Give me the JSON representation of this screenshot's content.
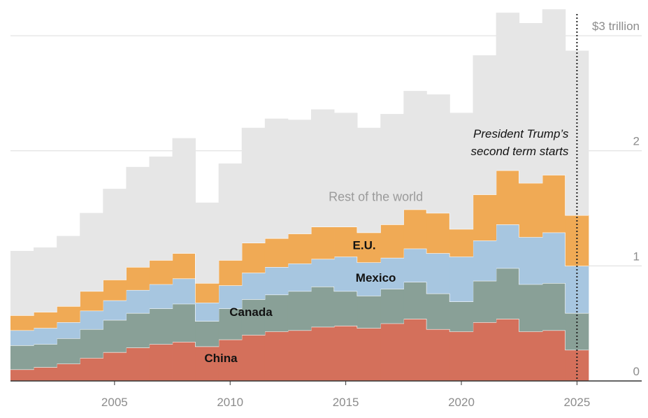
{
  "chart_data": {
    "type": "area",
    "stacked": true,
    "step": true,
    "title": "",
    "xlabel": "",
    "ylabel": "",
    "x": [
      2001,
      2002,
      2003,
      2004,
      2005,
      2006,
      2007,
      2008,
      2009,
      2010,
      2011,
      2012,
      2013,
      2014,
      2015,
      2016,
      2017,
      2018,
      2019,
      2020,
      2021,
      2022,
      2023,
      2024,
      2025
    ],
    "xlim": [
      2000.5,
      2027.8
    ],
    "x_ticks": [
      {
        "value": 2005,
        "label": "2005"
      },
      {
        "value": 2010,
        "label": "2010"
      },
      {
        "value": 2015,
        "label": "2015"
      },
      {
        "value": 2020,
        "label": "2020"
      },
      {
        "value": 2025,
        "label": "2025"
      }
    ],
    "ylim": [
      0,
      3.28
    ],
    "y_ticks": [
      {
        "value": 0,
        "label": "0"
      },
      {
        "value": 1,
        "label": "1"
      },
      {
        "value": 2,
        "label": "2"
      },
      {
        "value": 3,
        "label": "$3 trillion"
      }
    ],
    "grid": true,
    "series": [
      {
        "name": "China",
        "color": "#d4705b",
        "label_pos": {
          "x": 2009.6,
          "y": 0.2
        },
        "values": [
          0.1,
          0.12,
          0.15,
          0.2,
          0.25,
          0.29,
          0.32,
          0.34,
          0.3,
          0.36,
          0.4,
          0.43,
          0.44,
          0.47,
          0.48,
          0.46,
          0.5,
          0.54,
          0.45,
          0.43,
          0.51,
          0.54,
          0.43,
          0.44,
          0.27
        ]
      },
      {
        "name": "Canada",
        "color": "#89a097",
        "label_pos": {
          "x": 2010.9,
          "y": 0.6
        },
        "values": [
          0.21,
          0.2,
          0.22,
          0.25,
          0.28,
          0.3,
          0.31,
          0.33,
          0.22,
          0.27,
          0.31,
          0.32,
          0.34,
          0.35,
          0.3,
          0.28,
          0.3,
          0.32,
          0.31,
          0.26,
          0.36,
          0.44,
          0.41,
          0.41,
          0.32
        ]
      },
      {
        "name": "Mexico",
        "color": "#a7c6e0",
        "label_pos": {
          "x": 2016.3,
          "y": 0.9
        },
        "values": [
          0.13,
          0.14,
          0.14,
          0.16,
          0.17,
          0.2,
          0.21,
          0.22,
          0.16,
          0.2,
          0.23,
          0.24,
          0.24,
          0.24,
          0.3,
          0.29,
          0.27,
          0.29,
          0.35,
          0.39,
          0.35,
          0.38,
          0.41,
          0.44,
          0.41
        ]
      },
      {
        "name": "E.U.",
        "color": "#f0aa55",
        "label_pos": {
          "x": 2015.8,
          "y": 1.18
        },
        "values": [
          0.13,
          0.14,
          0.14,
          0.17,
          0.18,
          0.2,
          0.21,
          0.22,
          0.17,
          0.22,
          0.26,
          0.25,
          0.26,
          0.28,
          0.26,
          0.26,
          0.29,
          0.34,
          0.35,
          0.24,
          0.4,
          0.47,
          0.47,
          0.5,
          0.44
        ]
      },
      {
        "name": "Rest of the world",
        "color": "#e6e6e6",
        "label_pos": {
          "x": 2016.3,
          "y": 1.6
        },
        "values": [
          0.56,
          0.56,
          0.61,
          0.68,
          0.79,
          0.87,
          0.9,
          1.0,
          0.7,
          0.84,
          1.0,
          1.04,
          0.99,
          1.02,
          0.99,
          0.91,
          0.96,
          1.03,
          1.03,
          1.01,
          1.21,
          1.37,
          1.39,
          1.44,
          1.43
        ]
      }
    ],
    "annotation": {
      "x": 2025.0,
      "lines": [
        "President Trump’s",
        "second term starts"
      ]
    }
  }
}
